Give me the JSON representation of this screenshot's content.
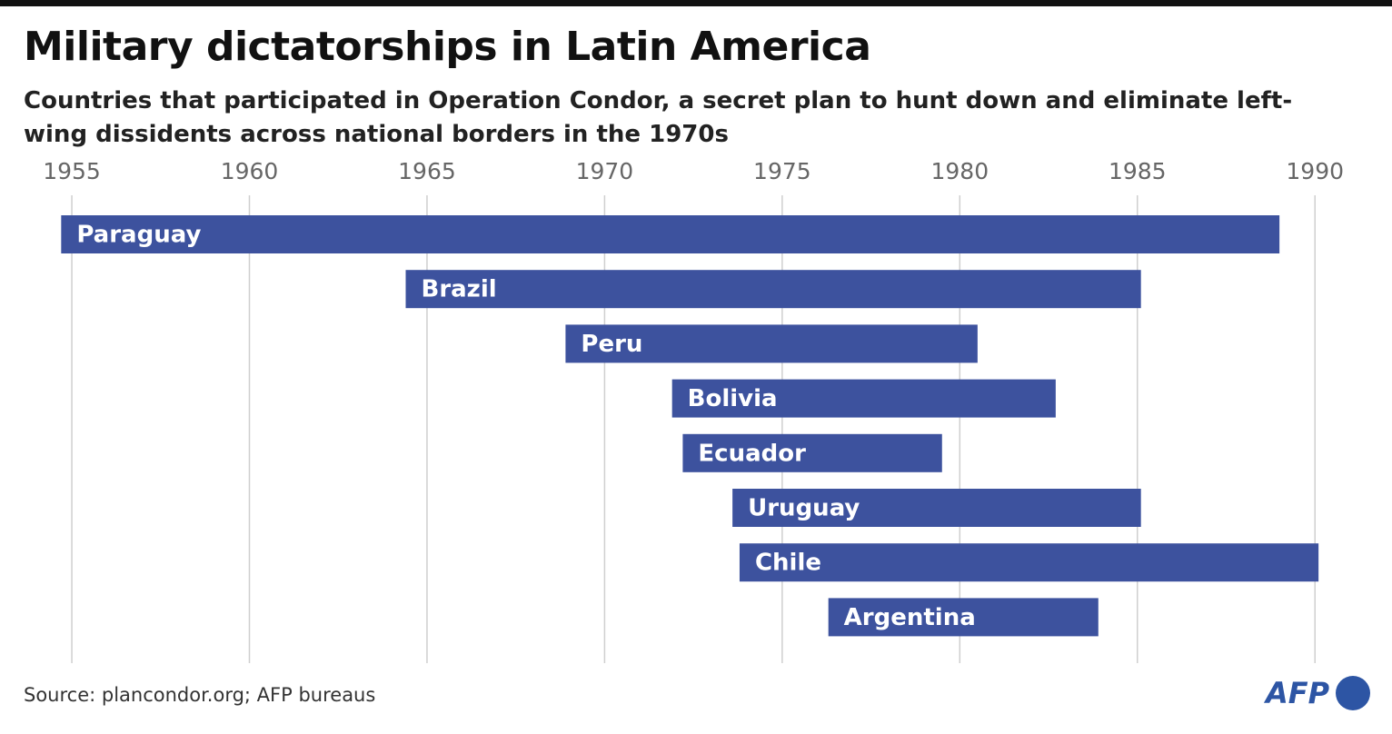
{
  "chart_data": {
    "type": "range-bar",
    "title": "Military dictatorships in Latin America",
    "subtitle": "Countries that participated in Operation Condor, a secret plan to hunt down and eliminate left-wing dissidents across national borders in the 1970s",
    "categories": [
      "Paraguay",
      "Brazil",
      "Peru",
      "Bolivia",
      "Ecuador",
      "Uruguay",
      "Chile",
      "Argentina"
    ],
    "start": [
      1954.7,
      1964.4,
      1968.9,
      1971.9,
      1972.2,
      1973.6,
      1973.8,
      1976.3
    ],
    "end": [
      1989.0,
      1985.1,
      1980.5,
      1982.7,
      1979.5,
      1985.1,
      1990.1,
      1983.9
    ],
    "color": "#3d529e",
    "xlim": [
      1954.5,
      1990.8
    ],
    "xticks": [
      1955,
      1960,
      1965,
      1970,
      1975,
      1980,
      1985,
      1990
    ],
    "grid": true,
    "source": "Source: plancondor.org; AFP bureaus",
    "logo": "AFP"
  }
}
